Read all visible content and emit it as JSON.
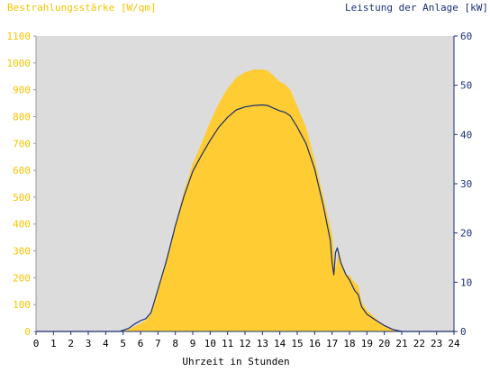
{
  "chart_data": {
    "type": "area",
    "left_axis_title": "Bestrahlungsstärke [W/qm]",
    "right_axis_title": "Leistung der Anlage [kW]",
    "xlabel": "Uhrzeit in Stunden",
    "x_ticks": [
      "0",
      "1",
      "2",
      "3",
      "4",
      "5",
      "6",
      "7",
      "8",
      "9",
      "10",
      "11",
      "12",
      "13",
      "14",
      "15",
      "16",
      "17",
      "18",
      "19",
      "20",
      "21",
      "22",
      "23",
      "24"
    ],
    "y_left_ticks": [
      "0",
      "100",
      "200",
      "300",
      "400",
      "500",
      "600",
      "700",
      "800",
      "900",
      "1000",
      "1100"
    ],
    "y_right_ticks": [
      "0",
      "10",
      "20",
      "30",
      "40",
      "50",
      "60"
    ],
    "xlim": [
      0,
      24
    ],
    "ylim_left": [
      0,
      1100
    ],
    "ylim_right": [
      0,
      60
    ],
    "grid": false,
    "colors": {
      "irradiance_fill": "#ffcc33",
      "power_line": "#1a2f6e",
      "plot_background": "#dcdcdc",
      "left_axis_text": "#f5c400",
      "right_axis_text": "#1a2f7a"
    },
    "series": [
      {
        "axis": "left",
        "style": "area",
        "points": [
          [
            0,
            0
          ],
          [
            5.0,
            0
          ],
          [
            5.3,
            8
          ],
          [
            5.7,
            20
          ],
          [
            6.0,
            30
          ],
          [
            6.3,
            42
          ],
          [
            6.6,
            65
          ],
          [
            7.0,
            160
          ],
          [
            7.5,
            270
          ],
          [
            8.0,
            400
          ],
          [
            8.5,
            520
          ],
          [
            9.0,
            625
          ],
          [
            9.5,
            700
          ],
          [
            10.0,
            780
          ],
          [
            10.5,
            850
          ],
          [
            11.0,
            905
          ],
          [
            11.5,
            945
          ],
          [
            12.0,
            965
          ],
          [
            12.5,
            975
          ],
          [
            13.0,
            975
          ],
          [
            13.3,
            972
          ],
          [
            13.6,
            955
          ],
          [
            14.0,
            930
          ],
          [
            14.3,
            920
          ],
          [
            14.6,
            900
          ],
          [
            15.0,
            840
          ],
          [
            15.5,
            760
          ],
          [
            16.0,
            640
          ],
          [
            16.5,
            500
          ],
          [
            17.0,
            360
          ],
          [
            17.2,
            230
          ],
          [
            17.4,
            300
          ],
          [
            17.6,
            240
          ],
          [
            17.8,
            210
          ],
          [
            18.0,
            210
          ],
          [
            18.2,
            190
          ],
          [
            18.5,
            170
          ],
          [
            18.7,
            110
          ],
          [
            19.0,
            80
          ],
          [
            19.5,
            50
          ],
          [
            20.0,
            20
          ],
          [
            20.5,
            5
          ],
          [
            21,
            0
          ],
          [
            24,
            0
          ]
        ]
      },
      {
        "axis": "right",
        "style": "line",
        "points": [
          [
            0,
            0
          ],
          [
            4.8,
            0
          ],
          [
            5.3,
            0.6
          ],
          [
            5.7,
            1.6
          ],
          [
            6.0,
            2.2
          ],
          [
            6.3,
            2.6
          ],
          [
            6.6,
            3.8
          ],
          [
            7.0,
            8.5
          ],
          [
            7.5,
            14.5
          ],
          [
            8.0,
            21.5
          ],
          [
            8.5,
            27.5
          ],
          [
            9.0,
            32.5
          ],
          [
            9.5,
            35.8
          ],
          [
            10.0,
            38.8
          ],
          [
            10.5,
            41.5
          ],
          [
            11.0,
            43.5
          ],
          [
            11.5,
            45.0
          ],
          [
            12.0,
            45.6
          ],
          [
            12.5,
            45.9
          ],
          [
            13.0,
            46.0
          ],
          [
            13.3,
            45.9
          ],
          [
            13.6,
            45.4
          ],
          [
            14.0,
            44.8
          ],
          [
            14.3,
            44.5
          ],
          [
            14.6,
            43.8
          ],
          [
            15.0,
            41.5
          ],
          [
            15.5,
            38.2
          ],
          [
            16.0,
            33.0
          ],
          [
            16.5,
            25.5
          ],
          [
            16.9,
            18.5
          ],
          [
            17.0,
            14.0
          ],
          [
            17.1,
            11.5
          ],
          [
            17.2,
            16.0
          ],
          [
            17.3,
            17.0
          ],
          [
            17.5,
            14.0
          ],
          [
            17.8,
            11.5
          ],
          [
            18.0,
            10.5
          ],
          [
            18.3,
            8.3
          ],
          [
            18.5,
            7.5
          ],
          [
            18.7,
            5.0
          ],
          [
            19.0,
            3.5
          ],
          [
            19.5,
            2.3
          ],
          [
            20.0,
            1.2
          ],
          [
            20.5,
            0.4
          ],
          [
            21,
            0
          ],
          [
            24,
            0
          ]
        ]
      }
    ]
  }
}
